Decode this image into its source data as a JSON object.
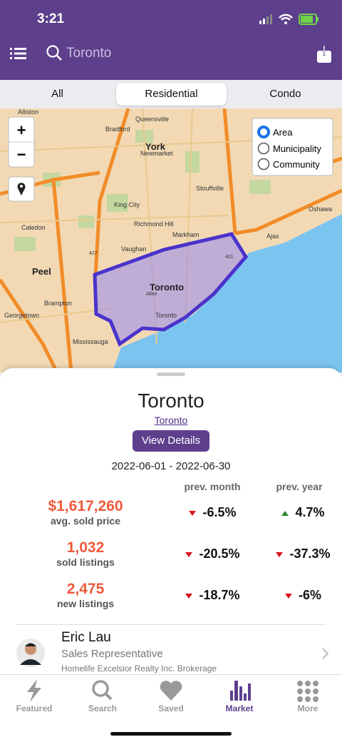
{
  "status_bar": {
    "time": "3:21"
  },
  "header": {
    "search": "Toronto"
  },
  "tabs": [
    "All",
    "Residential",
    "Condo"
  ],
  "map": {
    "zoom": [
      "+",
      "−"
    ],
    "layers": [
      "Area",
      "Municipality",
      "Community"
    ],
    "labels": [
      "Alliston",
      "Bradford",
      "Queensville",
      "York",
      "Newmarket",
      "King City",
      "Stouffville",
      "Richmond Hill",
      "Caledon",
      "Vaughan",
      "Markham",
      "Ajax",
      "Oshawa",
      "Peel",
      "Toronto",
      "Brampton",
      "Georgetown",
      "Mississauga",
      "Toronto",
      "Allen",
      "401",
      "427"
    ]
  },
  "summary": {
    "title": "Toronto",
    "link": "Toronto",
    "button": "View Details",
    "period": "2022-06-01 - 2022-06-30",
    "columns": [
      "prev. month",
      "prev. year"
    ],
    "rows": [
      {
        "value": "$1,617,260",
        "label": "avg. sold price",
        "changes": [
          "-6.5%",
          "4.7%"
        ]
      },
      {
        "value": "1,032",
        "label": "sold listings",
        "changes": [
          "-20.5%",
          "-37.3%"
        ]
      },
      {
        "value": "2,475",
        "label": "new listings",
        "changes": [
          "-18.7%",
          "-6%"
        ]
      }
    ]
  },
  "agent": {
    "name": "Eric Lau",
    "role": "Sales Representative",
    "brokerage": "Homelife Excelsior Realty Inc. Brokerage"
  },
  "nav": [
    "Featured",
    "Search",
    "Saved",
    "Market",
    "More"
  ]
}
